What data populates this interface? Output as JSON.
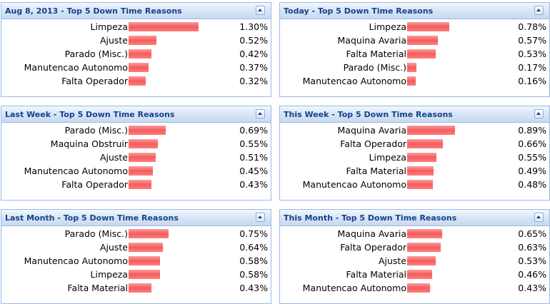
{
  "panels": [
    {
      "title": "Aug 8, 2013 - Top 5 Down Time Reasons",
      "rows": [
        {
          "label": "Limpeza",
          "value": "1.30%",
          "pct": 1.3
        },
        {
          "label": "Ajuste",
          "value": "0.52%",
          "pct": 0.52
        },
        {
          "label": "Parado (Misc.)",
          "value": "0.42%",
          "pct": 0.42
        },
        {
          "label": "Manutencao Autonomo",
          "value": "0.37%",
          "pct": 0.37
        },
        {
          "label": "Falta Operador",
          "value": "0.32%",
          "pct": 0.32
        }
      ]
    },
    {
      "title": "Today - Top 5 Down Time Reasons",
      "rows": [
        {
          "label": "Limpeza",
          "value": "0.78%",
          "pct": 0.78
        },
        {
          "label": "Maquina Avaria",
          "value": "0.57%",
          "pct": 0.57
        },
        {
          "label": "Falta Material",
          "value": "0.53%",
          "pct": 0.53
        },
        {
          "label": "Parado (Misc.)",
          "value": "0.17%",
          "pct": 0.17
        },
        {
          "label": "Manutencao Autonomo",
          "value": "0.16%",
          "pct": 0.16
        }
      ]
    },
    {
      "title": "Last Week - Top 5 Down Time Reasons",
      "rows": [
        {
          "label": "Parado (Misc.)",
          "value": "0.69%",
          "pct": 0.69
        },
        {
          "label": "Maquina Obstruir",
          "value": "0.55%",
          "pct": 0.55
        },
        {
          "label": "Ajuste",
          "value": "0.51%",
          "pct": 0.51
        },
        {
          "label": "Manutencao Autonomo",
          "value": "0.45%",
          "pct": 0.45
        },
        {
          "label": "Falta Operador",
          "value": "0.43%",
          "pct": 0.43
        }
      ]
    },
    {
      "title": "This Week - Top 5 Down Time Reasons",
      "rows": [
        {
          "label": "Maquina Avaria",
          "value": "0.89%",
          "pct": 0.89
        },
        {
          "label": "Falta Operador",
          "value": "0.66%",
          "pct": 0.66
        },
        {
          "label": "Limpeza",
          "value": "0.55%",
          "pct": 0.55
        },
        {
          "label": "Falta Material",
          "value": "0.49%",
          "pct": 0.49
        },
        {
          "label": "Manutencao Autonomo",
          "value": "0.48%",
          "pct": 0.48
        }
      ]
    },
    {
      "title": "Last Month - Top 5 Down Time Reasons",
      "rows": [
        {
          "label": "Parado (Misc.)",
          "value": "0.75%",
          "pct": 0.75
        },
        {
          "label": "Ajuste",
          "value": "0.64%",
          "pct": 0.64
        },
        {
          "label": "Manutencao Autonomo",
          "value": "0.58%",
          "pct": 0.58
        },
        {
          "label": "Limpeza",
          "value": "0.58%",
          "pct": 0.58
        },
        {
          "label": "Falta Material",
          "value": "0.43%",
          "pct": 0.43
        }
      ]
    },
    {
      "title": "This Month - Top 5 Down Time Reasons",
      "rows": [
        {
          "label": "Maquina Avaria",
          "value": "0.65%",
          "pct": 0.65
        },
        {
          "label": "Falta Operador",
          "value": "0.63%",
          "pct": 0.63
        },
        {
          "label": "Ajuste",
          "value": "0.53%",
          "pct": 0.53
        },
        {
          "label": "Falta Material",
          "value": "0.46%",
          "pct": 0.46
        },
        {
          "label": "Manutencao Autonomo",
          "value": "0.43%",
          "pct": 0.43
        }
      ]
    }
  ],
  "colors": {
    "bar": "#f25d5d",
    "header_text": "#15428b",
    "border": "#99bbe8"
  },
  "icons": {
    "collapse": "collapse-up-icon"
  }
}
